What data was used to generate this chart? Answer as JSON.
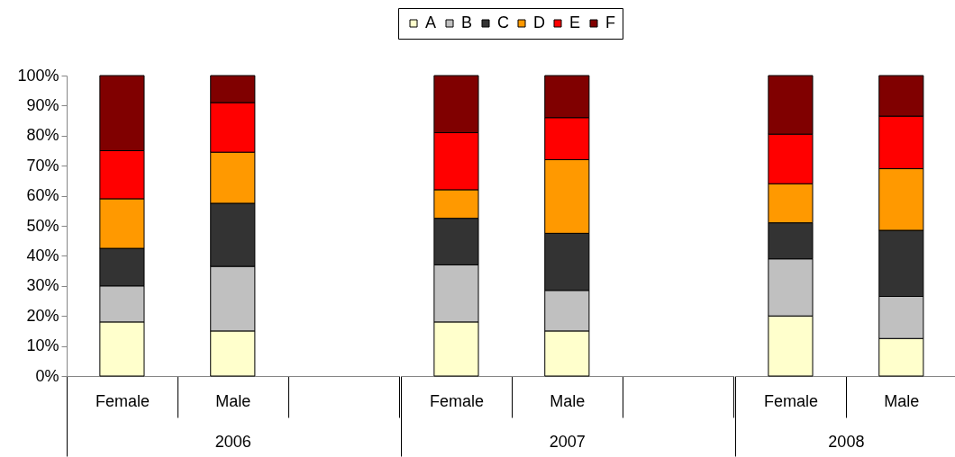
{
  "chart_data": [
    {
      "type": "bar",
      "stacked": true,
      "xlabel": "2006",
      "categories": [
        "Female",
        "Male",
        null
      ],
      "series": [
        {
          "name": "A",
          "color": "#ffffcc",
          "values": [
            18,
            15,
            null
          ]
        },
        {
          "name": "B",
          "color": "#c0c0c0",
          "values": [
            12,
            21.5,
            null
          ]
        },
        {
          "name": "C",
          "color": "#333333",
          "values": [
            12.5,
            21,
            null
          ]
        },
        {
          "name": "D",
          "color": "#ff9900",
          "values": [
            16.5,
            17,
            null
          ]
        },
        {
          "name": "E",
          "color": "#ff0000",
          "values": [
            16,
            16.5,
            null
          ]
        },
        {
          "name": "F",
          "color": "#800000",
          "values": [
            25,
            9,
            null
          ]
        }
      ],
      "ylim": [
        0,
        100
      ],
      "yticks": [
        {
          "value": 0,
          "label": "0%"
        },
        {
          "value": 10,
          "label": "10%"
        },
        {
          "value": 20,
          "label": "20%"
        },
        {
          "value": 30,
          "label": "30%"
        },
        {
          "value": 40,
          "label": "40%"
        },
        {
          "value": 50,
          "label": "50%"
        },
        {
          "value": 60,
          "label": "60%"
        },
        {
          "value": 70,
          "label": "70%"
        },
        {
          "value": 80,
          "label": "80%"
        },
        {
          "value": 90,
          "label": "90%"
        },
        {
          "value": 100,
          "label": "100%"
        }
      ],
      "legend": "top"
    },
    {
      "type": "bar",
      "stacked": true,
      "xlabel": "2007",
      "categories": [
        "Female",
        "Male",
        null
      ],
      "series": [
        {
          "name": "A",
          "color": "#ffffcc",
          "values": [
            18,
            15,
            null
          ]
        },
        {
          "name": "B",
          "color": "#c0c0c0",
          "values": [
            19,
            13.5,
            null
          ]
        },
        {
          "name": "C",
          "color": "#333333",
          "values": [
            15.5,
            19,
            null
          ]
        },
        {
          "name": "D",
          "color": "#ff9900",
          "values": [
            9.5,
            24.5,
            null
          ]
        },
        {
          "name": "E",
          "color": "#ff0000",
          "values": [
            19,
            14,
            null
          ]
        },
        {
          "name": "F",
          "color": "#800000",
          "values": [
            19,
            14,
            null
          ]
        }
      ],
      "ylim": [
        0,
        100
      ],
      "tick_labels": "x",
      "legend": "top"
    },
    {
      "type": "bar",
      "stacked": true,
      "xlabel": "2008",
      "categories": [
        "Female",
        "Male"
      ],
      "series": [
        {
          "name": "A",
          "color": "#ffffcc",
          "values": [
            20,
            12.5
          ]
        },
        {
          "name": "B",
          "color": "#c0c0c0",
          "values": [
            19,
            14
          ]
        },
        {
          "name": "C",
          "color": "#333333",
          "values": [
            12,
            22
          ]
        },
        {
          "name": "D",
          "color": "#ff9900",
          "values": [
            13,
            20.5
          ]
        },
        {
          "name": "E",
          "color": "#ff0000",
          "values": [
            16.5,
            17.5
          ]
        },
        {
          "name": "F",
          "color": "#800000",
          "values": [
            19.5,
            13.5
          ]
        }
      ],
      "ylim": [
        0,
        100
      ],
      "tick_labels": "x",
      "legend": "top"
    }
  ]
}
